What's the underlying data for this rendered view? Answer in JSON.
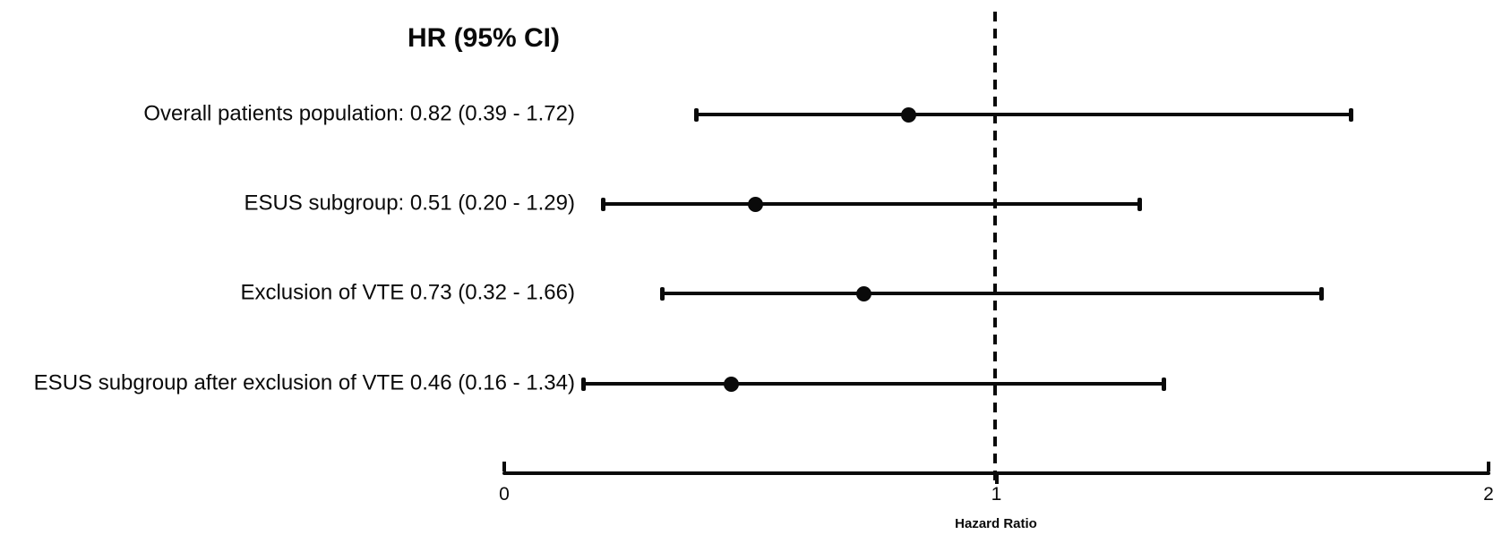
{
  "page": {
    "background_color": "#ffffff",
    "foreground_color": "#0a0a0a"
  },
  "chart_data": {
    "type": "scatter",
    "variant": "forest-plot",
    "title": "HR (95% CI)",
    "xlabel": "Hazard Ratio",
    "xlim": [
      0,
      2
    ],
    "xtick_values": [
      0,
      1,
      2
    ],
    "xtick_labels": [
      "0",
      "1",
      "2"
    ],
    "reference_line_x": 1,
    "reference_line_style": "dashed",
    "grid": false,
    "legend": "none",
    "rows": [
      {
        "label": "Overall patients population: 0.82 (0.39 - 1.72)",
        "hr": 0.82,
        "ci_low": 0.39,
        "ci_high": 1.72
      },
      {
        "label": "ESUS subgroup: 0.51 (0.20 - 1.29)",
        "hr": 0.51,
        "ci_low": 0.2,
        "ci_high": 1.29
      },
      {
        "label": "Exclusion of VTE 0.73 (0.32 - 1.66)",
        "hr": 0.73,
        "ci_low": 0.32,
        "ci_high": 1.66
      },
      {
        "label": "ESUS subgroup after exclusion of VTE 0.46 (0.16 - 1.34)",
        "hr": 0.46,
        "ci_low": 0.16,
        "ci_high": 1.34
      }
    ],
    "colors": {
      "marker": "#0a0a0a",
      "line": "#0a0a0a",
      "background": "#ffffff"
    }
  }
}
